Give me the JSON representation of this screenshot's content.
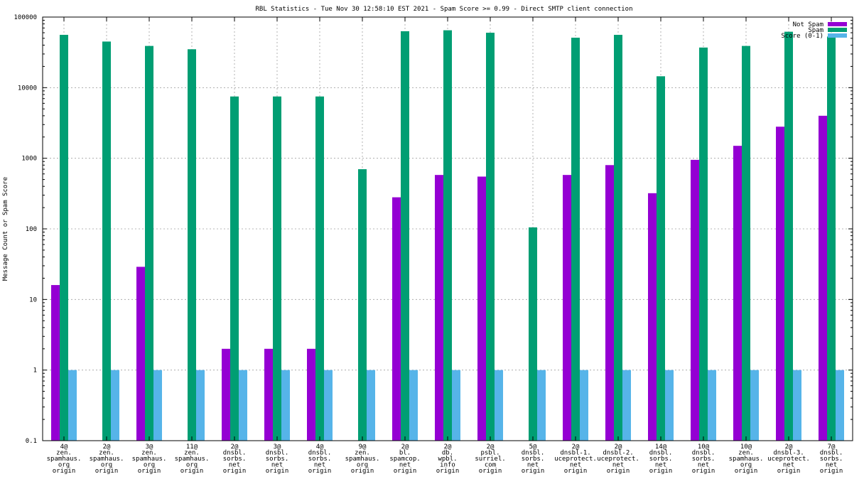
{
  "chart_data": {
    "type": "bar",
    "title": "RBL Statistics - Tue Nov 30 12:58:10 EST 2021 - Spam Score >= 0.99 - Direct SMTP client connection",
    "ylabel": "Message Count or Spam Score",
    "xlabel": "",
    "yscale": "log",
    "ylim": [
      0.1,
      100000
    ],
    "yticks": [
      {
        "value": 0.1,
        "label": "0.1"
      },
      {
        "value": 1,
        "label": "1"
      },
      {
        "value": 10,
        "label": "10"
      },
      {
        "value": 100,
        "label": "100"
      },
      {
        "value": 1000,
        "label": "1000"
      },
      {
        "value": 10000,
        "label": "10000"
      },
      {
        "value": 100000,
        "label": "100000"
      }
    ],
    "grid": true,
    "legend_position": "top-right",
    "categories": [
      [
        "4@",
        "zen.",
        "spamhaus.",
        "org",
        "origin"
      ],
      [
        "2@",
        "zen.",
        "spamhaus.",
        "org",
        "origin"
      ],
      [
        "3@",
        "zen.",
        "spamhaus.",
        "org",
        "origin"
      ],
      [
        "11@",
        "zen.",
        "spamhaus.",
        "org",
        "origin"
      ],
      [
        "2@",
        "dnsbl.",
        "sorbs.",
        "net",
        "origin"
      ],
      [
        "3@",
        "dnsbl.",
        "sorbs.",
        "net",
        "origin"
      ],
      [
        "4@",
        "dnsbl.",
        "sorbs.",
        "net",
        "origin"
      ],
      [
        "9@",
        "zen.",
        "spamhaus.",
        "org",
        "origin"
      ],
      [
        "2@",
        "bl.",
        "spamcop.",
        "net",
        "origin"
      ],
      [
        "2@",
        "db.",
        "wpbl.",
        "info",
        "origin"
      ],
      [
        "2@",
        "psbl.",
        "surriel.",
        "com",
        "origin"
      ],
      [
        "5@",
        "dnsbl.",
        "sorbs.",
        "net",
        "origin"
      ],
      [
        "2@",
        "dnsbl-1.",
        "uceprotect.",
        "net",
        "origin"
      ],
      [
        "2@",
        "dnsbl-2.",
        "uceprotect.",
        "net",
        "origin"
      ],
      [
        "14@",
        "dnsbl.",
        "sorbs.",
        "net",
        "origin"
      ],
      [
        "10@",
        "dnsbl.",
        "sorbs.",
        "net",
        "origin"
      ],
      [
        "10@",
        "zen.",
        "spamhaus.",
        "org",
        "origin"
      ],
      [
        "2@",
        "dnsbl-3.",
        "uceprotect.",
        "net",
        "origin"
      ],
      [
        "7@",
        "dnsbl.",
        "sorbs.",
        "net",
        "origin"
      ]
    ],
    "series": [
      {
        "name": "Not Spam",
        "color": "#9400d3",
        "values": [
          16,
          0,
          29,
          0,
          2,
          2,
          2,
          0,
          280,
          580,
          550,
          0,
          580,
          800,
          320,
          950,
          1500,
          2800,
          4000
        ]
      },
      {
        "name": "Spam",
        "color": "#009e73",
        "values": [
          56000,
          45000,
          39000,
          35000,
          7500,
          7500,
          7500,
          700,
          63000,
          65000,
          60000,
          105,
          51000,
          56000,
          14500,
          37000,
          39000,
          62000,
          53000
        ]
      },
      {
        "name": "Score (0-1)",
        "color": "#56b4e9",
        "values": [
          1,
          1,
          1,
          1,
          1,
          1,
          1,
          1,
          1,
          1,
          1,
          1,
          1,
          1,
          1,
          1,
          1,
          1,
          1
        ]
      }
    ]
  }
}
